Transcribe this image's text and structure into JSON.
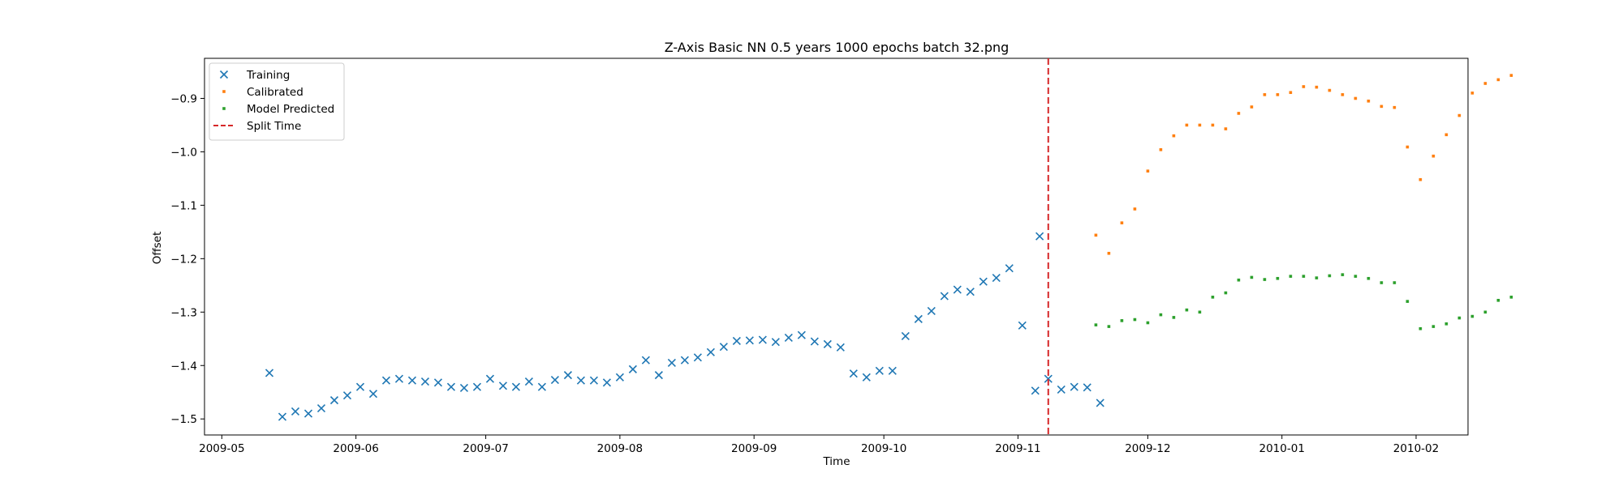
{
  "chart_data": {
    "type": "scatter",
    "title": "Z-Axis Basic NN 0.5 years 1000 epochs batch 32.png",
    "xlabel": "Time",
    "ylabel": "Offset",
    "xlim": [
      "2009-04-27",
      "2010-02-13"
    ],
    "ylim": [
      -1.53,
      -0.825
    ],
    "x_ticks": [
      "2009-05",
      "2009-06",
      "2009-07",
      "2009-08",
      "2009-09",
      "2009-10",
      "2009-11",
      "2009-12",
      "2010-01",
      "2010-02"
    ],
    "y_ticks": [
      -1.5,
      -1.4,
      -1.3,
      -1.2,
      -1.1,
      -1.0,
      -0.9
    ],
    "y_tick_labels": [
      "−1.5",
      "−1.4",
      "−1.3",
      "−1.2",
      "−1.1",
      "−1.0",
      "−0.9"
    ],
    "grid": false,
    "legend_position": "upper-left",
    "series": [
      {
        "name": "Training",
        "marker": "x",
        "color": "#1f77b4",
        "points": [
          [
            "2009-05-12",
            -1.414
          ],
          [
            "2009-05-15",
            -1.496
          ],
          [
            "2009-05-18",
            -1.486
          ],
          [
            "2009-05-21",
            -1.49
          ],
          [
            "2009-05-24",
            -1.48
          ],
          [
            "2009-05-27",
            -1.465
          ],
          [
            "2009-05-30",
            -1.456
          ],
          [
            "2009-06-02",
            -1.44
          ],
          [
            "2009-06-05",
            -1.453
          ],
          [
            "2009-06-08",
            -1.428
          ],
          [
            "2009-06-11",
            -1.425
          ],
          [
            "2009-06-14",
            -1.428
          ],
          [
            "2009-06-17",
            -1.43
          ],
          [
            "2009-06-20",
            -1.432
          ],
          [
            "2009-06-23",
            -1.44
          ],
          [
            "2009-06-26",
            -1.442
          ],
          [
            "2009-06-29",
            -1.44
          ],
          [
            "2009-07-02",
            -1.425
          ],
          [
            "2009-07-05",
            -1.438
          ],
          [
            "2009-07-08",
            -1.44
          ],
          [
            "2009-07-11",
            -1.43
          ],
          [
            "2009-07-14",
            -1.44
          ],
          [
            "2009-07-17",
            -1.427
          ],
          [
            "2009-07-20",
            -1.418
          ],
          [
            "2009-07-23",
            -1.428
          ],
          [
            "2009-07-26",
            -1.428
          ],
          [
            "2009-07-29",
            -1.432
          ],
          [
            "2009-08-01",
            -1.422
          ],
          [
            "2009-08-04",
            -1.407
          ],
          [
            "2009-08-07",
            -1.39
          ],
          [
            "2009-08-10",
            -1.418
          ],
          [
            "2009-08-13",
            -1.395
          ],
          [
            "2009-08-16",
            -1.39
          ],
          [
            "2009-08-19",
            -1.385
          ],
          [
            "2009-08-22",
            -1.375
          ],
          [
            "2009-08-25",
            -1.365
          ],
          [
            "2009-08-28",
            -1.354
          ],
          [
            "2009-08-31",
            -1.353
          ],
          [
            "2009-09-03",
            -1.352
          ],
          [
            "2009-09-06",
            -1.356
          ],
          [
            "2009-09-09",
            -1.348
          ],
          [
            "2009-09-12",
            -1.343
          ],
          [
            "2009-09-15",
            -1.355
          ],
          [
            "2009-09-18",
            -1.36
          ],
          [
            "2009-09-21",
            -1.366
          ],
          [
            "2009-09-24",
            -1.415
          ],
          [
            "2009-09-27",
            -1.422
          ],
          [
            "2009-09-30",
            -1.41
          ],
          [
            "2009-10-03",
            -1.41
          ],
          [
            "2009-10-06",
            -1.345
          ],
          [
            "2009-10-09",
            -1.313
          ],
          [
            "2009-10-12",
            -1.298
          ],
          [
            "2009-10-15",
            -1.27
          ],
          [
            "2009-10-18",
            -1.258
          ],
          [
            "2009-10-21",
            -1.262
          ],
          [
            "2009-10-24",
            -1.243
          ],
          [
            "2009-10-27",
            -1.236
          ],
          [
            "2009-10-30",
            -1.218
          ],
          [
            "2009-11-02",
            -1.325
          ],
          [
            "2009-11-05",
            -1.447
          ],
          [
            "2009-11-08",
            -1.425
          ],
          [
            "2009-11-11",
            -1.445
          ],
          [
            "2009-11-14",
            -1.44
          ],
          [
            "2009-11-17",
            -1.441
          ],
          [
            "2009-11-20",
            -1.47
          ],
          [
            "2009-11-06",
            -1.158
          ]
        ]
      },
      {
        "name": "Calibrated",
        "marker": "s",
        "color": "#ff7f0e",
        "points": [
          [
            "2009-11-19",
            -1.156
          ],
          [
            "2009-11-22",
            -1.19
          ],
          [
            "2009-11-25",
            -1.133
          ],
          [
            "2009-11-28",
            -1.107
          ],
          [
            "2009-12-01",
            -1.036
          ],
          [
            "2009-12-04",
            -0.996
          ],
          [
            "2009-12-07",
            -0.97
          ],
          [
            "2009-12-10",
            -0.95
          ],
          [
            "2009-12-13",
            -0.95
          ],
          [
            "2009-12-16",
            -0.95
          ],
          [
            "2009-12-19",
            -0.957
          ],
          [
            "2009-12-22",
            -0.928
          ],
          [
            "2009-12-25",
            -0.916
          ],
          [
            "2009-12-28",
            -0.893
          ],
          [
            "2009-12-31",
            -0.893
          ],
          [
            "2010-01-03",
            -0.889
          ],
          [
            "2010-01-06",
            -0.878
          ],
          [
            "2010-01-09",
            -0.879
          ],
          [
            "2010-01-12",
            -0.885
          ],
          [
            "2010-01-15",
            -0.893
          ],
          [
            "2010-01-18",
            -0.9
          ],
          [
            "2010-01-21",
            -0.905
          ],
          [
            "2010-01-24",
            -0.915
          ],
          [
            "2010-01-27",
            -0.917
          ],
          [
            "2010-01-30",
            -0.991
          ],
          [
            "2010-02-02",
            -1.052
          ],
          [
            "2010-02-05",
            -1.008
          ],
          [
            "2010-02-08",
            -0.968
          ],
          [
            "2010-02-11",
            -0.932
          ],
          [
            "2010-02-14",
            -0.89
          ],
          [
            "2010-02-17",
            -0.872
          ],
          [
            "2010-02-20",
            -0.865
          ],
          [
            "2010-02-23",
            -0.857
          ]
        ]
      },
      {
        "name": "Model Predicted",
        "marker": "s",
        "color": "#2ca02c",
        "points": [
          [
            "2009-11-19",
            -1.324
          ],
          [
            "2009-11-22",
            -1.327
          ],
          [
            "2009-11-25",
            -1.316
          ],
          [
            "2009-11-28",
            -1.314
          ],
          [
            "2009-12-01",
            -1.32
          ],
          [
            "2009-12-04",
            -1.305
          ],
          [
            "2009-12-07",
            -1.31
          ],
          [
            "2009-12-10",
            -1.296
          ],
          [
            "2009-12-13",
            -1.3
          ],
          [
            "2009-12-16",
            -1.272
          ],
          [
            "2009-12-19",
            -1.264
          ],
          [
            "2009-12-22",
            -1.24
          ],
          [
            "2009-12-25",
            -1.235
          ],
          [
            "2009-12-28",
            -1.239
          ],
          [
            "2009-12-31",
            -1.237
          ],
          [
            "2010-01-03",
            -1.233
          ],
          [
            "2010-01-06",
            -1.233
          ],
          [
            "2010-01-09",
            -1.236
          ],
          [
            "2010-01-12",
            -1.232
          ],
          [
            "2010-01-15",
            -1.23
          ],
          [
            "2010-01-18",
            -1.233
          ],
          [
            "2010-01-21",
            -1.237
          ],
          [
            "2010-01-24",
            -1.245
          ],
          [
            "2010-01-27",
            -1.245
          ],
          [
            "2010-01-30",
            -1.28
          ],
          [
            "2010-02-02",
            -1.331
          ],
          [
            "2010-02-05",
            -1.327
          ],
          [
            "2010-02-08",
            -1.322
          ],
          [
            "2010-02-11",
            -1.311
          ],
          [
            "2010-02-14",
            -1.308
          ],
          [
            "2010-02-17",
            -1.3
          ],
          [
            "2010-02-20",
            -1.278
          ],
          [
            "2010-02-23",
            -1.272
          ]
        ]
      },
      {
        "name": "Split Time",
        "marker": "dashed-vline",
        "color": "#d62728",
        "x": "2009-11-08"
      }
    ]
  }
}
